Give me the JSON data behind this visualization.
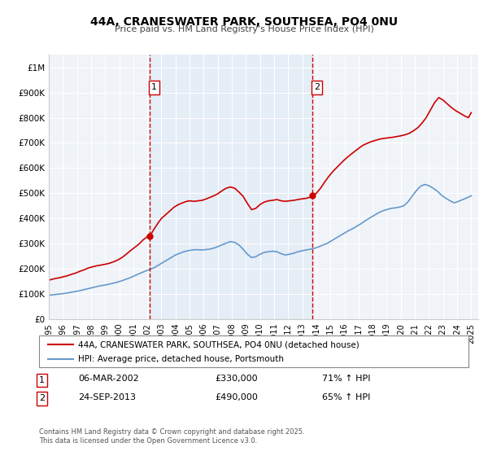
{
  "title": "44A, CRANESWATER PARK, SOUTHSEA, PO4 0NU",
  "subtitle": "Price paid vs. HM Land Registry's House Price Index (HPI)",
  "legend_entry1": "44A, CRANESWATER PARK, SOUTHSEA, PO4 0NU (detached house)",
  "legend_entry2": "HPI: Average price, detached house, Portsmouth",
  "footnote": "Contains HM Land Registry data © Crown copyright and database right 2025.\nThis data is licensed under the Open Government Licence v3.0.",
  "marker1_date": "06-MAR-2002",
  "marker1_price": "£330,000",
  "marker1_hpi": "71% ↑ HPI",
  "marker1_x": 2002.18,
  "marker1_y_red": 330000,
  "marker2_date": "24-SEP-2013",
  "marker2_price": "£490,000",
  "marker2_hpi": "65% ↑ HPI",
  "marker2_x": 2013.73,
  "marker2_y_red": 490000,
  "background_color": "#f0f4f8",
  "plot_bg": "#f0f4f8",
  "red_color": "#cc0000",
  "blue_color": "#6699cc",
  "ylim": [
    0,
    1050000
  ],
  "xlim": [
    1995,
    2025.5
  ],
  "yticks": [
    0,
    100000,
    200000,
    300000,
    400000,
    500000,
    600000,
    700000,
    800000,
    900000,
    1000000
  ],
  "ytick_labels": [
    "£0",
    "£100K",
    "£200K",
    "£300K",
    "£400K",
    "£500K",
    "£600K",
    "£700K",
    "£800K",
    "£900K",
    "£1M"
  ],
  "xticks": [
    1995,
    1996,
    1997,
    1998,
    1999,
    2000,
    2001,
    2002,
    2003,
    2004,
    2005,
    2006,
    2007,
    2008,
    2009,
    2010,
    2011,
    2012,
    2013,
    2014,
    2015,
    2016,
    2017,
    2018,
    2019,
    2020,
    2021,
    2022,
    2023,
    2024,
    2025
  ],
  "red_x": [
    1995.0,
    1995.2,
    1995.5,
    1995.8,
    1996.0,
    1996.3,
    1996.6,
    1996.9,
    1997.2,
    1997.5,
    1997.8,
    1998.1,
    1998.4,
    1998.7,
    1999.0,
    1999.3,
    1999.6,
    1999.9,
    2000.2,
    2000.5,
    2000.8,
    2001.1,
    2001.4,
    2001.7,
    2002.0,
    2002.18,
    2002.5,
    2002.8,
    2003.0,
    2003.3,
    2003.6,
    2003.9,
    2004.2,
    2004.5,
    2004.8,
    2005.0,
    2005.3,
    2005.6,
    2005.9,
    2006.2,
    2006.5,
    2006.8,
    2007.0,
    2007.3,
    2007.6,
    2007.9,
    2008.2,
    2008.5,
    2008.8,
    2009.1,
    2009.4,
    2009.7,
    2010.0,
    2010.3,
    2010.6,
    2010.9,
    2011.2,
    2011.5,
    2011.8,
    2012.1,
    2012.4,
    2012.7,
    2013.0,
    2013.3,
    2013.6,
    2013.73,
    2014.0,
    2014.3,
    2014.6,
    2014.9,
    2015.2,
    2015.5,
    2015.8,
    2016.1,
    2016.4,
    2016.7,
    2017.0,
    2017.3,
    2017.6,
    2017.9,
    2018.2,
    2018.5,
    2018.8,
    2019.1,
    2019.4,
    2019.7,
    2020.0,
    2020.3,
    2020.6,
    2020.9,
    2021.2,
    2021.5,
    2021.8,
    2022.1,
    2022.4,
    2022.7,
    2023.0,
    2023.3,
    2023.6,
    2023.9,
    2024.2,
    2024.5,
    2024.8,
    2025.0
  ],
  "red_y": [
    155000,
    158000,
    162000,
    165000,
    168000,
    172000,
    178000,
    183000,
    190000,
    196000,
    203000,
    208000,
    212000,
    215000,
    218000,
    222000,
    228000,
    235000,
    245000,
    258000,
    272000,
    285000,
    298000,
    315000,
    328000,
    330000,
    360000,
    385000,
    400000,
    415000,
    430000,
    445000,
    455000,
    462000,
    468000,
    470000,
    468000,
    470000,
    472000,
    478000,
    485000,
    492000,
    498000,
    510000,
    520000,
    525000,
    520000,
    505000,
    488000,
    460000,
    435000,
    440000,
    455000,
    465000,
    470000,
    472000,
    475000,
    470000,
    468000,
    470000,
    472000,
    475000,
    478000,
    480000,
    485000,
    490000,
    500000,
    520000,
    545000,
    568000,
    588000,
    605000,
    622000,
    638000,
    652000,
    665000,
    678000,
    690000,
    698000,
    705000,
    710000,
    715000,
    718000,
    720000,
    722000,
    725000,
    728000,
    732000,
    738000,
    748000,
    760000,
    778000,
    800000,
    830000,
    860000,
    880000,
    870000,
    855000,
    840000,
    828000,
    818000,
    808000,
    800000,
    820000
  ],
  "blue_x": [
    1995.0,
    1995.3,
    1995.6,
    1995.9,
    1996.2,
    1996.5,
    1996.8,
    1997.1,
    1997.4,
    1997.7,
    1998.0,
    1998.3,
    1998.6,
    1998.9,
    1999.2,
    1999.5,
    1999.8,
    2000.1,
    2000.4,
    2000.7,
    2001.0,
    2001.3,
    2001.6,
    2001.9,
    2002.2,
    2002.5,
    2002.8,
    2003.1,
    2003.4,
    2003.7,
    2004.0,
    2004.3,
    2004.6,
    2004.9,
    2005.2,
    2005.5,
    2005.8,
    2006.1,
    2006.4,
    2006.7,
    2007.0,
    2007.3,
    2007.6,
    2007.9,
    2008.2,
    2008.5,
    2008.8,
    2009.1,
    2009.4,
    2009.7,
    2010.0,
    2010.3,
    2010.6,
    2010.9,
    2011.2,
    2011.5,
    2011.8,
    2012.1,
    2012.4,
    2012.7,
    2013.0,
    2013.3,
    2013.6,
    2013.9,
    2014.2,
    2014.5,
    2014.8,
    2015.1,
    2015.4,
    2015.7,
    2016.0,
    2016.3,
    2016.6,
    2016.9,
    2017.2,
    2017.5,
    2017.8,
    2018.1,
    2018.4,
    2018.7,
    2019.0,
    2019.3,
    2019.6,
    2019.9,
    2020.2,
    2020.5,
    2020.8,
    2021.1,
    2021.4,
    2021.7,
    2022.0,
    2022.3,
    2022.6,
    2022.9,
    2023.2,
    2023.5,
    2023.8,
    2024.1,
    2024.4,
    2024.7,
    2025.0
  ],
  "blue_y": [
    95000,
    97000,
    99000,
    101000,
    103000,
    106000,
    109000,
    112000,
    116000,
    120000,
    124000,
    128000,
    132000,
    135000,
    138000,
    142000,
    146000,
    151000,
    157000,
    163000,
    170000,
    178000,
    185000,
    192000,
    198000,
    205000,
    215000,
    225000,
    235000,
    245000,
    255000,
    262000,
    268000,
    272000,
    275000,
    276000,
    275000,
    276000,
    278000,
    282000,
    288000,
    295000,
    302000,
    308000,
    305000,
    295000,
    278000,
    258000,
    245000,
    248000,
    258000,
    265000,
    268000,
    270000,
    268000,
    260000,
    255000,
    258000,
    262000,
    268000,
    272000,
    275000,
    278000,
    282000,
    288000,
    295000,
    302000,
    312000,
    322000,
    332000,
    342000,
    352000,
    360000,
    370000,
    380000,
    392000,
    402000,
    412000,
    422000,
    430000,
    435000,
    440000,
    442000,
    445000,
    450000,
    465000,
    488000,
    510000,
    528000,
    535000,
    530000,
    520000,
    508000,
    492000,
    480000,
    470000,
    462000,
    468000,
    475000,
    482000,
    490000
  ]
}
